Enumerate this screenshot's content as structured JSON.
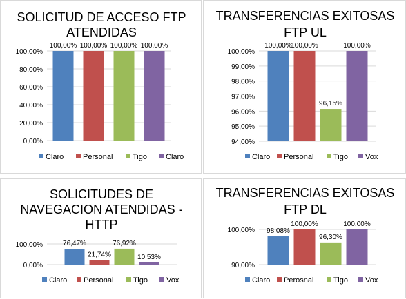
{
  "chart_data": [
    {
      "type": "bar",
      "title": "SOLICITUD DE ACCESO FTP ATENDIDAS",
      "title_lines": [
        "SOLICITUD DE ACCESO FTP",
        "ATENDIDAS"
      ],
      "categories": [
        "Claro",
        "Personal",
        "Tigo",
        "Claro"
      ],
      "values": [
        100.0,
        100.0,
        100.0,
        100.0
      ],
      "data_labels": [
        "100,00%",
        "100,00%",
        "100,00%",
        "100,00%"
      ],
      "colors": [
        "#4f81bd",
        "#c0504d",
        "#9bbb59",
        "#8064a2"
      ],
      "ylim": [
        0,
        100
      ],
      "yticks": [
        0,
        20,
        40,
        60,
        80,
        100
      ],
      "ytick_labels": [
        "0,00%",
        "20,00%",
        "40,00%",
        "60,00%",
        "80,00%",
        "100,00%"
      ],
      "grid": true,
      "legend": "bottom"
    },
    {
      "type": "bar",
      "title": "TRANSFERENCIAS EXITOSAS FTP UL",
      "title_lines": [
        "TRANSFERENCIAS EXITOSAS",
        "FTP UL"
      ],
      "categories": [
        "Claro",
        "Personal",
        "Tigo",
        "Vox"
      ],
      "values": [
        100.0,
        100.0,
        96.15,
        100.0
      ],
      "data_labels": [
        "100,00%",
        "100,00%",
        "96,15%",
        "100,00%"
      ],
      "colors": [
        "#4f81bd",
        "#c0504d",
        "#9bbb59",
        "#8064a2"
      ],
      "ylim": [
        94,
        100
      ],
      "yticks": [
        94,
        95,
        96,
        97,
        98,
        99,
        100
      ],
      "ytick_labels": [
        "94,00%",
        "95,00%",
        "96,00%",
        "97,00%",
        "98,00%",
        "99,00%",
        "100,00%"
      ],
      "grid": true,
      "legend": "bottom"
    },
    {
      "type": "bar",
      "title": "SOLICITUDES DE NAVEGACION ATENDIDAS - HTTP",
      "title_lines": [
        "SOLICITUDES DE",
        "NAVEGACION ATENDIDAS -",
        "HTTP"
      ],
      "categories": [
        "Claro",
        "Personal",
        "Tigo",
        "Vox"
      ],
      "values": [
        76.47,
        21.74,
        76.92,
        10.53
      ],
      "data_labels": [
        "76,47%",
        "21,74%",
        "76,92%",
        "10,53%"
      ],
      "colors": [
        "#4f81bd",
        "#c0504d",
        "#9bbb59",
        "#8064a2"
      ],
      "ylim": [
        0,
        100
      ],
      "yticks": [
        0,
        100
      ],
      "ytick_labels": [
        "0,00%",
        "100,00%"
      ],
      "grid": true,
      "legend": "bottom"
    },
    {
      "type": "bar",
      "title": "TRANSFERENCIAS EXITOSAS FTP DL",
      "title_lines": [
        "TRANSFERENCIAS EXITOSAS",
        "FTP DL"
      ],
      "categories": [
        "Claro",
        "Perosnal",
        "Tigo",
        "Vox"
      ],
      "values": [
        98.08,
        100.0,
        96.3,
        100.0
      ],
      "data_labels": [
        "98,08%",
        "100,00%",
        "96,30%",
        "100,00%"
      ],
      "colors": [
        "#4f81bd",
        "#c0504d",
        "#9bbb59",
        "#8064a2"
      ],
      "ylim": [
        90,
        100
      ],
      "yticks": [
        90,
        100
      ],
      "ytick_labels": [
        "90,00%",
        "100,00%"
      ],
      "grid": true,
      "legend": "bottom"
    }
  ]
}
